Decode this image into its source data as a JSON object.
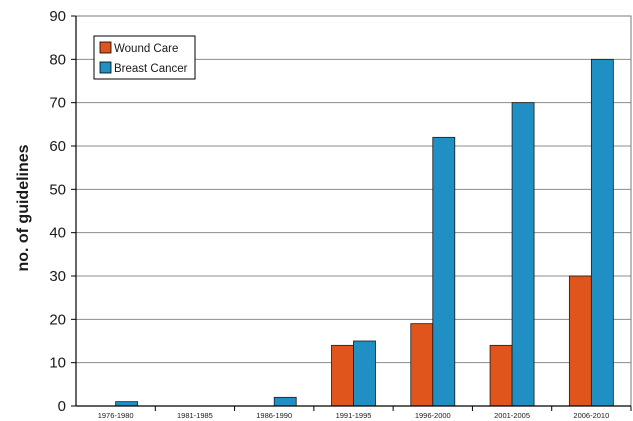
{
  "chart_data": {
    "type": "bar",
    "title": "",
    "xlabel": "",
    "ylabel": "no. of guidelines",
    "ylim": [
      0,
      90
    ],
    "yticks": [
      0,
      10,
      20,
      30,
      40,
      50,
      60,
      70,
      80,
      90
    ],
    "categories": [
      "1976-1980",
      "1981-1985",
      "1986-1990",
      "1991-1995",
      "1996-2000",
      "2001-2005",
      "2006-2010"
    ],
    "series": [
      {
        "name": "Wound Care",
        "color": "#e0551b",
        "values": [
          0,
          0,
          0,
          14,
          19,
          14,
          30
        ]
      },
      {
        "name": "Breast Cancer",
        "color": "#1f8fc4",
        "values": [
          1,
          0,
          2,
          15,
          62,
          70,
          80
        ]
      }
    ],
    "grid": true,
    "legend_position": "top-left"
  }
}
